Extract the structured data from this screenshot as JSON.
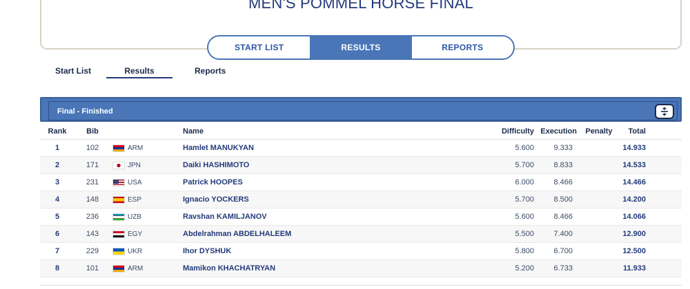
{
  "page_title": "MEN'S POMMEL HORSE FINAL",
  "segmented_tabs": [
    "START LIST",
    "RESULTS",
    "REPORTS"
  ],
  "segmented_active": "RESULTS",
  "sub_tabs": [
    "Start List",
    "Results",
    "Reports"
  ],
  "sub_active": "Results",
  "panel": {
    "label": "Final - Finished",
    "collapse_icon": "expand-collapse-icon"
  },
  "columns": {
    "rank": "Rank",
    "bib": "Bib",
    "name": "Name",
    "difficulty": "Difficulty",
    "execution": "Execution",
    "penalty": "Penalty",
    "total": "Total"
  },
  "rows": [
    {
      "rank": "1",
      "bib": "102",
      "noc": "ARM",
      "flag": "arm",
      "name": "Hamlet MANUKYAN",
      "difficulty": "5.600",
      "execution": "9.333",
      "penalty": "",
      "total": "14.933"
    },
    {
      "rank": "2",
      "bib": "171",
      "noc": "JPN",
      "flag": "jpn",
      "name": "Daiki HASHIMOTO",
      "difficulty": "5.700",
      "execution": "8.833",
      "penalty": "",
      "total": "14.533"
    },
    {
      "rank": "3",
      "bib": "231",
      "noc": "USA",
      "flag": "usa",
      "name": "Patrick HOOPES",
      "difficulty": "6.000",
      "execution": "8.466",
      "penalty": "",
      "total": "14.466"
    },
    {
      "rank": "4",
      "bib": "148",
      "noc": "ESP",
      "flag": "esp",
      "name": "Ignacio YOCKERS",
      "difficulty": "5.700",
      "execution": "8.500",
      "penalty": "",
      "total": "14.200"
    },
    {
      "rank": "5",
      "bib": "236",
      "noc": "UZB",
      "flag": "uzb",
      "name": "Ravshan KAMILJANOV",
      "difficulty": "5.600",
      "execution": "8.466",
      "penalty": "",
      "total": "14.066"
    },
    {
      "rank": "6",
      "bib": "143",
      "noc": "EGY",
      "flag": "egy",
      "name": "Abdelrahman ABDELHALEEM",
      "difficulty": "5.500",
      "execution": "7.400",
      "penalty": "",
      "total": "12.900"
    },
    {
      "rank": "7",
      "bib": "229",
      "noc": "UKR",
      "flag": "ukr",
      "name": "Ihor DYSHUK",
      "difficulty": "5.800",
      "execution": "6.700",
      "penalty": "",
      "total": "12.500"
    },
    {
      "rank": "8",
      "bib": "101",
      "noc": "ARM",
      "flag": "arm",
      "name": "Mamikon KHACHATRYAN",
      "difficulty": "5.200",
      "execution": "6.733",
      "penalty": "",
      "total": "11.933"
    }
  ]
}
